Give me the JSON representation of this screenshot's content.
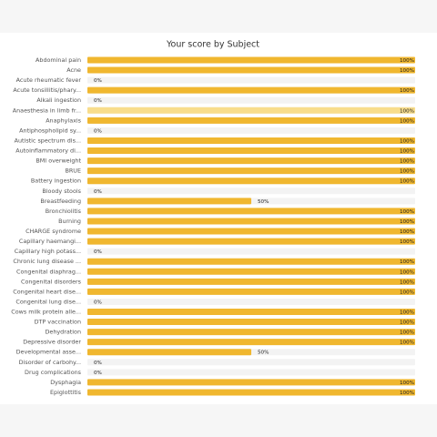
{
  "chart_data": {
    "type": "hbar",
    "title": "Your score by Subject",
    "categories": [
      "Abdominal pain",
      "Acne",
      "Acute rheumatic fever",
      "Acute tonsillitis/phary...",
      "Alkali ingestion",
      "Anaesthesia in limb fr...",
      "Anaphylaxis",
      "Antiphospholipid sy...",
      "Autistic spectrum dis...",
      "Autoinflammatory di...",
      "BMI overweight",
      "BRUE",
      "Battery ingestion",
      "Bloody stools",
      "Breastfeeding",
      "Bronchiolitis",
      "Burning",
      "CHARGE syndrome",
      "Capillary haemangi...",
      "Capillary high potass...",
      "Chronic lung disease ...",
      "Congenital diaphrag...",
      "Congenital disorders",
      "Congenital heart dise...",
      "Congenital lung dise...",
      "Cows milk protein alle...",
      "DTP vaccination",
      "Dehydration",
      "Depressive disorder",
      "Developmental asse...",
      "Disorder of carbohy...",
      "Drug complications",
      "Dysphagia",
      "Epiglottitis"
    ],
    "values": [
      100,
      100,
      0,
      100,
      0,
      100,
      100,
      0,
      100,
      100,
      100,
      100,
      100,
      0,
      50,
      100,
      100,
      100,
      100,
      0,
      100,
      100,
      100,
      100,
      0,
      100,
      100,
      100,
      100,
      50,
      0,
      0,
      100,
      100
    ],
    "value_labels": [
      "100%",
      "100%",
      "0%",
      "100%",
      "0%",
      "100%",
      "100%",
      "0%",
      "100%",
      "100%",
      "100%",
      "100%",
      "100%",
      "0%",
      "50%",
      "100%",
      "100%",
      "100%",
      "100%",
      "0%",
      "100%",
      "100%",
      "100%",
      "100%",
      "0%",
      "100%",
      "100%",
      "100%",
      "100%",
      "50%",
      "0%",
      "0%",
      "100%",
      "100%"
    ],
    "xlim": [
      0,
      100
    ],
    "color": "#f0b72f",
    "highlight": {
      "index": 5,
      "color": "#f8dd8c"
    }
  }
}
